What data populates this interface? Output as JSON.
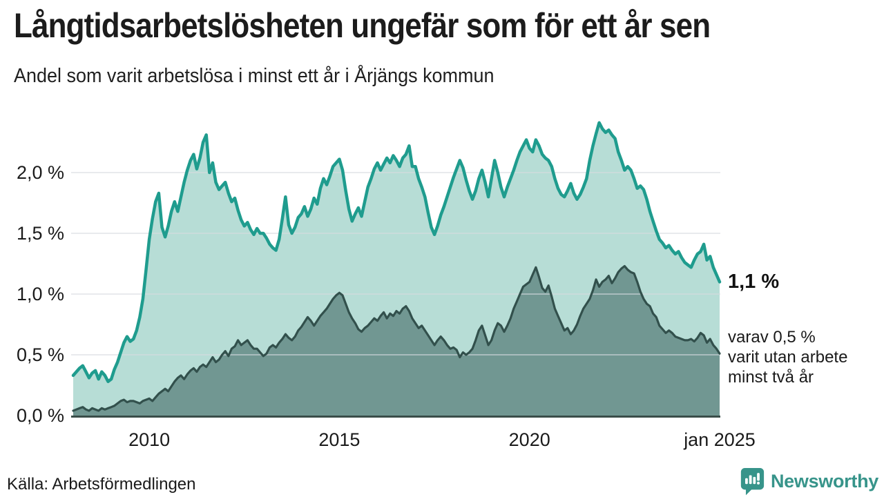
{
  "header": {
    "title": "Långtidsarbetslösheten ungefär som för ett år sen",
    "subtitle": "Andel som varit arbetslösa i minst ett år i Årjängs kommun"
  },
  "annotations": {
    "latest_value": "1,1 %",
    "secondary_note": "varav 0,5 %\nvarit utan arbete\nminst två år"
  },
  "footer": {
    "source": "Källa: Arbetsförmedlingen",
    "brand": "Newsworthy"
  },
  "colors": {
    "line_primary": "#1f9c8e",
    "fill_primary": "#b7ddd6",
    "line_secondary": "#32504c",
    "fill_secondary": "#719792",
    "gridline": "#d8dce0",
    "axis": "#3a4d49",
    "brand": "#37948a",
    "text": "#1a1a1a"
  },
  "chart_data": {
    "type": "area",
    "title": "Långtidsarbetslösheten ungefär som för ett år sen",
    "subtitle": "Andel som varit arbetslösa i minst ett år i Årjängs kommun",
    "x_unit": "month",
    "x_start_year": 2008,
    "x_end_label": "jan 2025",
    "x_ticks": [
      {
        "label": "2010",
        "year": 2010
      },
      {
        "label": "2015",
        "year": 2015
      },
      {
        "label": "2020",
        "year": 2020
      },
      {
        "label": "jan 2025",
        "year": 2025
      }
    ],
    "y_tick_labels": [
      "0,0 %",
      "0,5 %",
      "1,0 %",
      "1,5 %",
      "2,0 %"
    ],
    "y_tick_values": [
      0,
      0.5,
      1.0,
      1.5,
      2.0
    ],
    "ylim": [
      0,
      2.45
    ],
    "grid": true,
    "legend_position": "right-annotations",
    "series": [
      {
        "name": "Andel arbetslösa minst ett år",
        "latest_value": 1.1,
        "values": [
          0.33,
          0.36,
          0.39,
          0.41,
          0.36,
          0.31,
          0.35,
          0.37,
          0.3,
          0.36,
          0.33,
          0.28,
          0.3,
          0.38,
          0.44,
          0.52,
          0.6,
          0.65,
          0.61,
          0.63,
          0.7,
          0.81,
          0.96,
          1.2,
          1.45,
          1.62,
          1.76,
          1.83,
          1.55,
          1.47,
          1.56,
          1.68,
          1.76,
          1.68,
          1.8,
          1.92,
          2.02,
          2.1,
          2.15,
          2.03,
          2.12,
          2.25,
          2.31,
          2.0,
          2.08,
          1.92,
          1.86,
          1.89,
          1.92,
          1.83,
          1.76,
          1.79,
          1.69,
          1.61,
          1.56,
          1.59,
          1.53,
          1.49,
          1.54,
          1.5,
          1.5,
          1.46,
          1.41,
          1.38,
          1.36,
          1.45,
          1.62,
          1.8,
          1.57,
          1.5,
          1.55,
          1.63,
          1.66,
          1.72,
          1.64,
          1.7,
          1.79,
          1.74,
          1.87,
          1.95,
          1.9,
          1.97,
          2.05,
          2.08,
          2.11,
          2.02,
          1.85,
          1.7,
          1.6,
          1.66,
          1.71,
          1.64,
          1.76,
          1.88,
          1.95,
          2.03,
          2.08,
          2.02,
          2.07,
          2.12,
          2.08,
          2.14,
          2.1,
          2.05,
          2.12,
          2.15,
          2.22,
          2.05,
          2.05,
          1.95,
          1.88,
          1.8,
          1.67,
          1.55,
          1.49,
          1.56,
          1.65,
          1.72,
          1.8,
          1.88,
          1.96,
          2.03,
          2.1,
          2.04,
          1.94,
          1.85,
          1.78,
          1.85,
          1.95,
          2.02,
          1.92,
          1.8,
          1.95,
          2.1,
          2.0,
          1.88,
          1.8,
          1.88,
          1.95,
          2.02,
          2.1,
          2.17,
          2.22,
          2.27,
          2.2,
          2.17,
          2.27,
          2.22,
          2.15,
          2.12,
          2.1,
          2.05,
          1.95,
          1.87,
          1.82,
          1.8,
          1.85,
          1.91,
          1.83,
          1.78,
          1.82,
          1.88,
          1.95,
          2.1,
          2.22,
          2.32,
          2.41,
          2.36,
          2.33,
          2.35,
          2.31,
          2.28,
          2.17,
          2.1,
          2.02,
          2.05,
          2.02,
          1.95,
          1.87,
          1.89,
          1.86,
          1.78,
          1.68,
          1.6,
          1.52,
          1.45,
          1.42,
          1.38,
          1.4,
          1.36,
          1.33,
          1.35,
          1.3,
          1.26,
          1.24,
          1.22,
          1.28,
          1.33,
          1.35,
          1.41,
          1.28,
          1.31,
          1.22,
          1.16,
          1.1
        ]
      },
      {
        "name": "Andel arbetslösa minst två år",
        "latest_value": 0.5,
        "values": [
          0.04,
          0.05,
          0.06,
          0.07,
          0.05,
          0.04,
          0.06,
          0.05,
          0.04,
          0.06,
          0.05,
          0.06,
          0.07,
          0.08,
          0.1,
          0.12,
          0.13,
          0.11,
          0.12,
          0.12,
          0.11,
          0.1,
          0.12,
          0.13,
          0.14,
          0.12,
          0.15,
          0.18,
          0.2,
          0.22,
          0.2,
          0.24,
          0.28,
          0.31,
          0.33,
          0.3,
          0.34,
          0.37,
          0.39,
          0.36,
          0.4,
          0.42,
          0.4,
          0.44,
          0.48,
          0.44,
          0.46,
          0.5,
          0.53,
          0.49,
          0.55,
          0.57,
          0.62,
          0.58,
          0.6,
          0.62,
          0.58,
          0.55,
          0.55,
          0.52,
          0.49,
          0.51,
          0.56,
          0.58,
          0.56,
          0.6,
          0.63,
          0.67,
          0.64,
          0.62,
          0.65,
          0.7,
          0.73,
          0.77,
          0.81,
          0.78,
          0.74,
          0.78,
          0.82,
          0.85,
          0.88,
          0.92,
          0.96,
          0.99,
          1.01,
          0.99,
          0.92,
          0.85,
          0.8,
          0.76,
          0.71,
          0.69,
          0.72,
          0.74,
          0.77,
          0.8,
          0.78,
          0.82,
          0.85,
          0.8,
          0.84,
          0.82,
          0.86,
          0.84,
          0.88,
          0.9,
          0.86,
          0.8,
          0.76,
          0.72,
          0.74,
          0.7,
          0.66,
          0.62,
          0.58,
          0.62,
          0.65,
          0.62,
          0.58,
          0.55,
          0.56,
          0.54,
          0.48,
          0.52,
          0.5,
          0.52,
          0.55,
          0.62,
          0.7,
          0.74,
          0.66,
          0.58,
          0.62,
          0.7,
          0.76,
          0.74,
          0.69,
          0.74,
          0.8,
          0.88,
          0.94,
          1.0,
          1.06,
          1.08,
          1.1,
          1.16,
          1.22,
          1.14,
          1.05,
          1.02,
          1.07,
          0.98,
          0.88,
          0.82,
          0.76,
          0.7,
          0.72,
          0.67,
          0.7,
          0.75,
          0.82,
          0.88,
          0.92,
          0.96,
          1.03,
          1.12,
          1.06,
          1.1,
          1.12,
          1.15,
          1.09,
          1.13,
          1.18,
          1.21,
          1.23,
          1.2,
          1.18,
          1.17,
          1.1,
          1.02,
          0.96,
          0.92,
          0.9,
          0.84,
          0.81,
          0.74,
          0.71,
          0.68,
          0.7,
          0.68,
          0.65,
          0.64,
          0.63,
          0.62,
          0.62,
          0.63,
          0.61,
          0.64,
          0.68,
          0.66,
          0.6,
          0.63,
          0.58,
          0.55,
          0.51
        ]
      }
    ]
  }
}
